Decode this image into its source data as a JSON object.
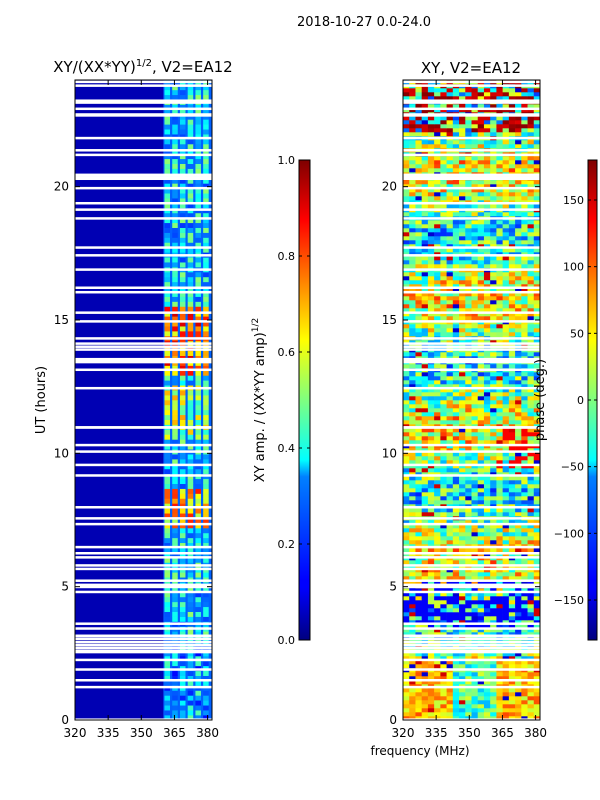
{
  "suptitle": "2018-10-27 0.0-24.0",
  "xlabel_shared": "frequency (MHz)",
  "chart_data": [
    {
      "type": "heatmap",
      "title_main": "XY/(XX*YY)",
      "title_sup": "1/2",
      "title_tail": ", V2=EA12",
      "ylabel": "UT (hours)",
      "xlim": [
        320,
        382
      ],
      "ylim": [
        0,
        24
      ],
      "xticks": [
        320,
        335,
        350,
        365,
        380
      ],
      "yticks": [
        0,
        5,
        10,
        15,
        20
      ],
      "active_band_mhz": [
        360,
        382
      ],
      "colorbar": {
        "label_main": "XY amp. / (XX*YY amp)",
        "label_sup": "1/2",
        "range": [
          0.0,
          1.0
        ],
        "ticks": [
          0.0,
          0.2,
          0.4,
          0.6,
          0.8,
          1.0
        ],
        "tick_labels": [
          "0.0",
          "0.2",
          "0.4",
          "0.6",
          "0.8",
          "1.0"
        ],
        "colormap": "jet"
      }
    },
    {
      "type": "heatmap",
      "title": "XY, V2=EA12",
      "xlim": [
        320,
        382
      ],
      "ylim": [
        0,
        24
      ],
      "xticks": [
        320,
        335,
        350,
        365,
        380
      ],
      "yticks": [
        0,
        5,
        10,
        15,
        20
      ],
      "colorbar": {
        "label": "phase (deg.)",
        "range": [
          -180,
          180
        ],
        "ticks": [
          -150,
          -100,
          -50,
          0,
          50,
          100,
          150
        ],
        "tick_labels": [
          "−150",
          "−100",
          "−50",
          "0",
          "50",
          "100",
          "150"
        ],
        "colormap": "jet"
      }
    }
  ]
}
